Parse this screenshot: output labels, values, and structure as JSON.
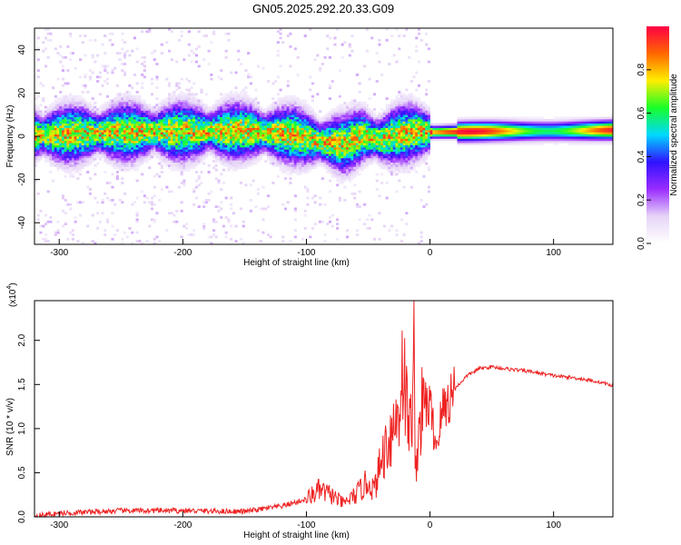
{
  "title": "GN05.2025.292.20.33.G09",
  "colors": {
    "line": "#ee2222",
    "axis": "#000000",
    "rainbow": [
      "#ffffff",
      "#e6d4f7",
      "#9a2cff",
      "#2f12ff",
      "#00d9ff",
      "#18ff28",
      "#ffee00",
      "#ff6600",
      "#ff0044"
    ]
  },
  "chart_data": [
    {
      "type": "heatmap",
      "xlabel": "Height of straight line (km)",
      "ylabel": "Frequency (Hz)",
      "xlim": [
        -320,
        148
      ],
      "ylim": [
        -50,
        50
      ],
      "xticks": [
        -300,
        -200,
        -100,
        0,
        100
      ],
      "yticks": [
        -40,
        -20,
        0,
        20,
        40
      ],
      "colorbar": {
        "label": "Normalized spectral amplitude",
        "range": [
          0,
          1
        ],
        "ticks": [
          "0.0",
          "0.2",
          "0.4",
          "0.6",
          "0.8"
        ],
        "tick_values": [
          0,
          0.2,
          0.4,
          0.6,
          0.8
        ]
      },
      "ridge": {
        "x": [
          -320,
          -250,
          -150,
          -110,
          -90,
          -70,
          -55,
          -40,
          -30,
          -15,
          0,
          50,
          100,
          148
        ],
        "y": [
          0,
          1.5,
          2,
          0,
          -3,
          -4,
          0,
          -2,
          0,
          1.5,
          1.5,
          2,
          2,
          2.5
        ]
      }
    },
    {
      "type": "line",
      "xlabel": "Height of straight line (km)",
      "ylabel": "SNR (10 * v/v)",
      "multiplier": "(x10",
      "multiplier_exp": "4",
      "multiplier_close": ")",
      "xlim": [
        -320,
        148
      ],
      "ylim": [
        0,
        2.45
      ],
      "xticks": [
        -300,
        -200,
        -100,
        0,
        100
      ],
      "yticks": [
        0.0,
        0.5,
        1.0,
        1.5,
        2.0
      ],
      "ytick_labels": [
        "0.0",
        "0.5",
        "1.0",
        "1.5",
        "2.0"
      ],
      "series": [
        {
          "x": [
            -320,
            -300,
            -250,
            -200,
            -150,
            -120,
            -100,
            -90,
            -80,
            -70,
            -60,
            -50,
            -45,
            -40,
            -35,
            -30,
            -25,
            -22,
            -20,
            -18,
            -15,
            -13,
            -12,
            -10,
            -5,
            0,
            5,
            10,
            20,
            30,
            40,
            50,
            60,
            80,
            100,
            120,
            140,
            148
          ],
          "y": [
            0.01,
            0.04,
            0.07,
            0.07,
            0.06,
            0.12,
            0.2,
            0.3,
            0.25,
            0.15,
            0.25,
            0.4,
            0.3,
            0.6,
            0.85,
            1.0,
            1.2,
            1.8,
            1.4,
            1.1,
            1.0,
            2.45,
            0.4,
            0.9,
            1.3,
            1.25,
            0.8,
            1.2,
            1.45,
            1.6,
            1.68,
            1.7,
            1.68,
            1.65,
            1.6,
            1.57,
            1.52,
            1.48
          ]
        }
      ]
    }
  ]
}
